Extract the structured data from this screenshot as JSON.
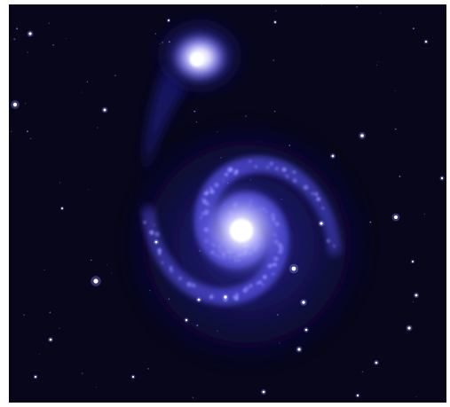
{
  "image": {
    "subject": "whirlpool-galaxy-and-companion",
    "palette": {
      "sky": "#07061a",
      "deep_blue": "#1a1770",
      "arm_blue": "#4a46c8",
      "glow": "#8f8cff",
      "core": "#ffffff"
    }
  }
}
